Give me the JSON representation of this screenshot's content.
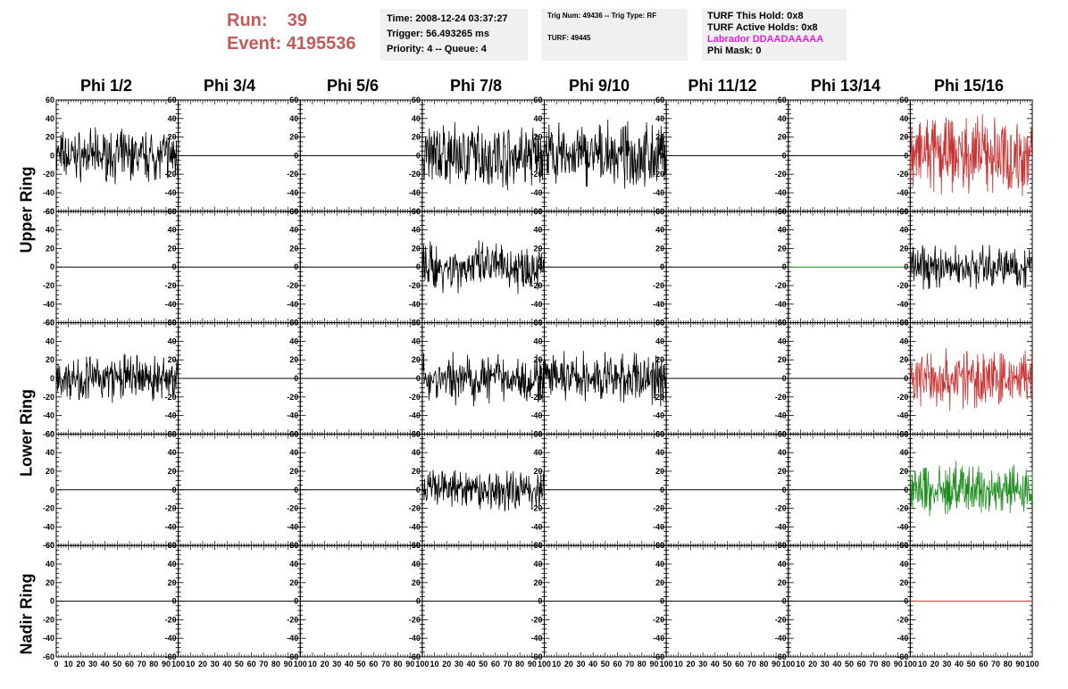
{
  "header": {
    "run_label": "Run:",
    "run_value": "39",
    "event_label": "Event:",
    "event_value": "4195536",
    "time": "Time: 2008-12-24 03:37:27",
    "trigger": "Trigger: 56.493265 ms",
    "priority": "Priority: 4 -- Queue: 4",
    "trig_num": "Trig Num: 49436 -- Trig Type: RF",
    "turf": "TURF: 49445",
    "turf_this_hold": "TURF This Hold: 0x8",
    "turf_active_holds": "TURF Active Holds: 0x8",
    "labrador": "Labrador DDAADAAAAA",
    "phi_mask": "Phi Mask: 0"
  },
  "columns": [
    "Phi 1/2",
    "Phi 3/4",
    "Phi 5/6",
    "Phi 7/8",
    "Phi 9/10",
    "Phi 11/12",
    "Phi 13/14",
    "Phi 15/16"
  ],
  "rows": [
    "Upper Ring",
    "Lower Ring",
    "Nadir Ring"
  ],
  "colors": {
    "black": "#000000",
    "red": "#c83232",
    "green": "#1e8c1e",
    "magenta": "#e01fe0",
    "title": "#c35a5a"
  },
  "chart_data": {
    "type": "line",
    "xlim": [
      0,
      100
    ],
    "ylim": [
      -60,
      60
    ],
    "yticks": [
      "60",
      "40",
      "20",
      "0",
      "-20",
      "-40",
      "-60"
    ],
    "xticks": [
      "0",
      "10",
      "20",
      "30",
      "40",
      "50",
      "60",
      "70",
      "80",
      "90",
      "100"
    ],
    "grid": false,
    "panels": [
      [
        {
          "color": "#000000",
          "amp": 24
        },
        {
          "color": "#000000",
          "amp": 0
        },
        {
          "color": "#000000",
          "amp": 0
        },
        {
          "color": "#000000",
          "amp": 30
        },
        {
          "color": "#000000",
          "amp": 30
        },
        {
          "color": "#000000",
          "amp": 0
        },
        {
          "color": "#000000",
          "amp": 0
        },
        {
          "color": "#c83232",
          "amp": 38
        }
      ],
      [
        {
          "color": "#000000",
          "amp": 0
        },
        {
          "color": "#000000",
          "amp": 0
        },
        {
          "color": "#000000",
          "amp": 0
        },
        {
          "color": "#000000",
          "amp": 24
        },
        {
          "color": "#000000",
          "amp": 0
        },
        {
          "color": "#000000",
          "amp": 0
        },
        {
          "color": "#1e8c1e",
          "amp": 0
        },
        {
          "color": "#000000",
          "amp": 20
        }
      ],
      [
        {
          "color": "#000000",
          "amp": 22
        },
        {
          "color": "#000000",
          "amp": 0
        },
        {
          "color": "#000000",
          "amp": 0
        },
        {
          "color": "#000000",
          "amp": 24
        },
        {
          "color": "#000000",
          "amp": 24
        },
        {
          "color": "#000000",
          "amp": 0
        },
        {
          "color": "#000000",
          "amp": 0
        },
        {
          "color": "#c83232",
          "amp": 28
        }
      ],
      [
        {
          "color": "#000000",
          "amp": 0
        },
        {
          "color": "#000000",
          "amp": 0
        },
        {
          "color": "#000000",
          "amp": 0
        },
        {
          "color": "#000000",
          "amp": 20
        },
        {
          "color": "#000000",
          "amp": 0
        },
        {
          "color": "#000000",
          "amp": 0
        },
        {
          "color": "#000000",
          "amp": 0
        },
        {
          "color": "#1e8c1e",
          "amp": 26
        }
      ],
      [
        {
          "color": "#000000",
          "amp": 0
        },
        {
          "color": "#000000",
          "amp": 0
        },
        {
          "color": "#000000",
          "amp": 0
        },
        {
          "color": "#000000",
          "amp": 0
        },
        {
          "color": "#000000",
          "amp": 0
        },
        {
          "color": "#000000",
          "amp": 0
        },
        {
          "color": "#000000",
          "amp": 0
        },
        {
          "color": "#c83232",
          "amp": 0
        }
      ]
    ]
  }
}
